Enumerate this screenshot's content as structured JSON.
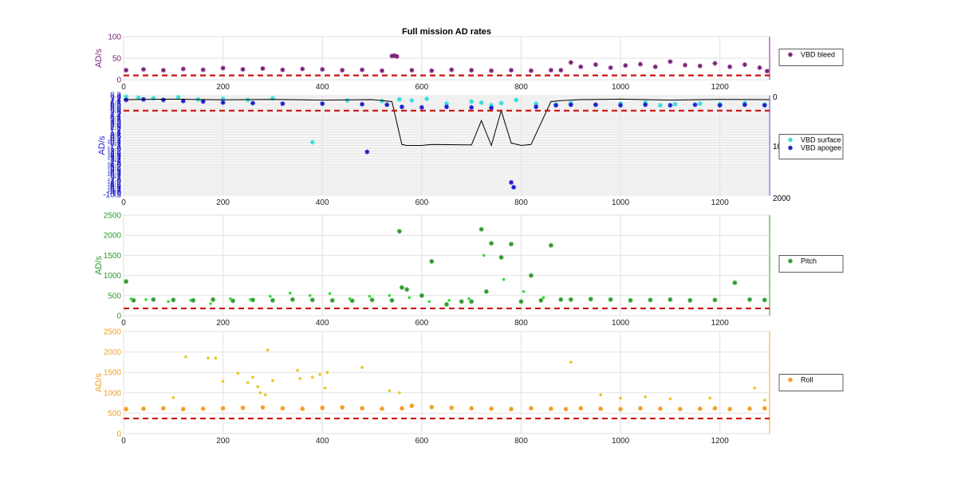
{
  "figure_title": "Full mission AD rates",
  "chart_data": [
    {
      "type": "scatter",
      "ylabel": "AD/s",
      "axis_color": "#7a1f7a",
      "xlim": [
        0,
        1300
      ],
      "ylim": [
        0,
        100
      ],
      "x_ticks": [
        "0",
        "200",
        "400",
        "600",
        "800",
        "1000",
        "1200"
      ],
      "y_ticks": [
        "0",
        "50",
        "100"
      ],
      "grid": true,
      "legend_position": "right",
      "series": [
        {
          "name": "VBD bleed",
          "color": "#7a1f7a",
          "marker": "*",
          "x": [
            5,
            40,
            80,
            120,
            160,
            200,
            240,
            280,
            320,
            360,
            400,
            440,
            480,
            520,
            540,
            545,
            550,
            580,
            620,
            660,
            700,
            740,
            780,
            820,
            860,
            880,
            900,
            920,
            950,
            980,
            1010,
            1040,
            1070,
            1100,
            1130,
            1160,
            1190,
            1220,
            1250,
            1280,
            1295
          ],
          "y": [
            22,
            24,
            22,
            25,
            23,
            27,
            24,
            26,
            23,
            25,
            24,
            22,
            23,
            21,
            55,
            56,
            54,
            22,
            21,
            23,
            22,
            21,
            22,
            21,
            22,
            22,
            40,
            30,
            35,
            28,
            33,
            36,
            30,
            42,
            34,
            32,
            38,
            30,
            35,
            28,
            20
          ]
        },
        {
          "name": "",
          "color": "#cc1111",
          "marker": "dashed",
          "x": [
            0,
            1300
          ],
          "y": [
            10,
            10
          ]
        }
      ]
    },
    {
      "type": "scatter",
      "ylabel": "AD/s",
      "axis_color": "#1a1acc",
      "xlim": [
        0,
        1300
      ],
      "x_ticks": [
        "0",
        "200",
        "400",
        "600",
        "800",
        "1000",
        "1200"
      ],
      "left_ticks": [
        "8.3",
        "8",
        "7.7",
        "7.4",
        "7.1",
        "6.8",
        "6.5",
        "6.2",
        "5.9",
        "5.6",
        "5.3",
        "5",
        "4.7",
        "4.4",
        "4.1",
        "3.8",
        "3.5",
        "3.2",
        "2.9",
        "2.6",
        "2.3",
        "2",
        "1.7",
        "1.4",
        "1.1",
        "0.8",
        "0.5",
        "0.2",
        "-0.1",
        "-0.4",
        "-0.7",
        "-1",
        "-1.3",
        "-1.6",
        "-1.9",
        "-2.2",
        "-2.5",
        "-2.8",
        "-3.1",
        "-3.4",
        "-3.7",
        "-4",
        "-4.3",
        "-4.6",
        "-4.9",
        "-5.2",
        "-5.5",
        "-5.8",
        "-6.1",
        "-6.4",
        "-6.7",
        "-7",
        "-7.3",
        "-7.6",
        "-7.9",
        "-8.2",
        "-8.5",
        "-8.8",
        "-9.1",
        "-9.4",
        "-9.7",
        "-10",
        "-10.3"
      ],
      "right_axis": {
        "ylim": [
          0,
          2000
        ],
        "ticks": [
          "0",
          "10",
          "2000"
        ]
      },
      "grid": true,
      "legend_position": "right",
      "series": [
        {
          "name": "VBD surface",
          "color": "#33dddd",
          "marker": "*",
          "x": [
            5,
            30,
            60,
            110,
            150,
            200,
            250,
            300,
            380,
            450,
            520,
            555,
            580,
            610,
            650,
            700,
            720,
            740,
            760,
            790,
            830,
            870,
            900,
            950,
            1000,
            1050,
            1080,
            1110,
            1160,
            1200,
            1250,
            1290
          ],
          "y": [
            8.1,
            7.9,
            7.8,
            8.0,
            7.6,
            7.7,
            7.5,
            7.8,
            -0.4,
            7.4,
            7.3,
            7.6,
            7.4,
            7.7,
            6.8,
            7.2,
            7.0,
            6.5,
            6.9,
            7.5,
            6.8,
            6.6,
            6.9,
            6.6,
            6.8,
            7.0,
            6.5,
            6.7,
            6.8,
            6.7,
            6.9,
            6.6
          ]
        },
        {
          "name": "VBD apogee",
          "color": "#1a1acc",
          "marker": "*",
          "x": [
            5,
            40,
            80,
            120,
            160,
            200,
            260,
            320,
            400,
            480,
            490,
            530,
            560,
            600,
            650,
            700,
            740,
            780,
            785,
            830,
            870,
            900,
            950,
            1000,
            1050,
            1100,
            1150,
            1200,
            1250,
            1290
          ],
          "y": [
            7.5,
            7.6,
            7.5,
            7.3,
            7.2,
            7.0,
            6.9,
            6.8,
            6.8,
            6.7,
            -2.2,
            6.6,
            6.2,
            6.1,
            6.2,
            6.1,
            6.0,
            -7.9,
            -8.8,
            6.2,
            6.5,
            6.6,
            6.6,
            6.5,
            6.6,
            6.5,
            6.6,
            6.5,
            6.6,
            6.5
          ]
        },
        {
          "name": "",
          "color": "#000000",
          "marker": "line",
          "axis": "right",
          "x": [
            0,
            100,
            200,
            300,
            400,
            500,
            540,
            560,
            570,
            600,
            620,
            700,
            720,
            740,
            760,
            780,
            800,
            820,
            860,
            880,
            920,
            1000,
            1100,
            1200,
            1300
          ],
          "y": [
            80,
            70,
            85,
            75,
            90,
            80,
            120,
            980,
            1000,
            1000,
            980,
            990,
            500,
            1000,
            300,
            950,
            1000,
            980,
            120,
            100,
            80,
            70,
            90,
            75,
            80
          ]
        },
        {
          "name": "",
          "color": "#cc1111",
          "marker": "dashed",
          "x": [
            0,
            1300
          ],
          "y": [
            5.5,
            5.5
          ]
        }
      ]
    },
    {
      "type": "scatter",
      "ylabel": "AD/s",
      "axis_color": "#2a9a2a",
      "xlim": [
        0,
        1300
      ],
      "ylim": [
        0,
        2500
      ],
      "x_ticks": [
        "0",
        "200",
        "400",
        "600",
        "800",
        "1000",
        "1200"
      ],
      "y_ticks": [
        "0",
        "500",
        "1000",
        "1500",
        "2000",
        "2500"
      ],
      "grid": true,
      "legend_position": "right",
      "series": [
        {
          "name": "Pitch",
          "color": "#2a9a2a",
          "marker": "*",
          "x": [
            5,
            20,
            60,
            100,
            140,
            180,
            220,
            260,
            300,
            340,
            380,
            420,
            460,
            500,
            540,
            555,
            560,
            570,
            600,
            620,
            650,
            680,
            700,
            720,
            730,
            740,
            760,
            780,
            800,
            820,
            840,
            860,
            880,
            900,
            940,
            980,
            1020,
            1060,
            1100,
            1140,
            1190,
            1230,
            1260,
            1290
          ],
          "y": [
            850,
            380,
            400,
            390,
            380,
            400,
            370,
            390,
            380,
            400,
            390,
            380,
            370,
            390,
            380,
            2100,
            700,
            650,
            500,
            1350,
            280,
            350,
            350,
            2150,
            600,
            1800,
            1450,
            1780,
            350,
            1000,
            380,
            1750,
            400,
            400,
            410,
            400,
            380,
            390,
            400,
            380,
            390,
            820,
            400,
            390
          ]
        },
        {
          "name": "",
          "color": "#33dd33",
          "marker": "dot",
          "x": [
            15,
            45,
            90,
            135,
            175,
            215,
            255,
            295,
            335,
            375,
            415,
            455,
            495,
            535,
            575,
            615,
            655,
            695,
            725,
            765,
            805,
            845
          ],
          "y": [
            420,
            400,
            350,
            380,
            300,
            420,
            400,
            480,
            560,
            500,
            550,
            420,
            480,
            500,
            450,
            350,
            380,
            420,
            1500,
            900,
            600,
            450
          ]
        },
        {
          "name": "",
          "color": "#cc1111",
          "marker": "dashed",
          "x": [
            0,
            1300
          ],
          "y": [
            180,
            180
          ]
        }
      ]
    },
    {
      "type": "scatter",
      "ylabel": "AD/s",
      "axis_color": "#f0a020",
      "xlim": [
        0,
        1300
      ],
      "ylim": [
        0,
        2500
      ],
      "x_ticks": [
        "0",
        "200",
        "400",
        "600",
        "800",
        "1000",
        "1200"
      ],
      "y_ticks": [
        "0",
        "500",
        "1000",
        "1500",
        "2000",
        "2500"
      ],
      "grid": true,
      "legend_position": "right",
      "series": [
        {
          "name": "Roll",
          "color": "#f39a1c",
          "marker": "*",
          "x": [
            5,
            40,
            80,
            120,
            160,
            200,
            240,
            280,
            320,
            360,
            400,
            440,
            480,
            520,
            560,
            580,
            620,
            660,
            700,
            740,
            780,
            820,
            860,
            890,
            920,
            960,
            1000,
            1040,
            1080,
            1120,
            1160,
            1190,
            1220,
            1260,
            1290
          ],
          "y": [
            600,
            610,
            620,
            600,
            610,
            620,
            630,
            640,
            620,
            610,
            630,
            640,
            620,
            610,
            620,
            680,
            650,
            630,
            620,
            610,
            600,
            620,
            610,
            600,
            620,
            610,
            600,
            620,
            610,
            600,
            610,
            620,
            600,
            610,
            620
          ]
        },
        {
          "name": "",
          "color": "#e8c620",
          "marker": "dot",
          "x": [
            100,
            125,
            170,
            185,
            200,
            230,
            250,
            260,
            270,
            275,
            285,
            290,
            300,
            350,
            355,
            380,
            395,
            405,
            410,
            480,
            535,
            555,
            900,
            960,
            1000,
            1050,
            1100,
            1180,
            1270,
            1290
          ],
          "y": [
            880,
            1880,
            1850,
            1850,
            1280,
            1480,
            1250,
            1380,
            1150,
            1000,
            950,
            2050,
            1300,
            1550,
            1350,
            1380,
            1450,
            1120,
            1500,
            1620,
            1050,
            1000,
            1750,
            950,
            870,
            900,
            850,
            870,
            1120,
            820
          ]
        },
        {
          "name": "",
          "color": "#cc1111",
          "marker": "dashed",
          "x": [
            0,
            1300
          ],
          "y": [
            370,
            370
          ]
        }
      ]
    }
  ]
}
